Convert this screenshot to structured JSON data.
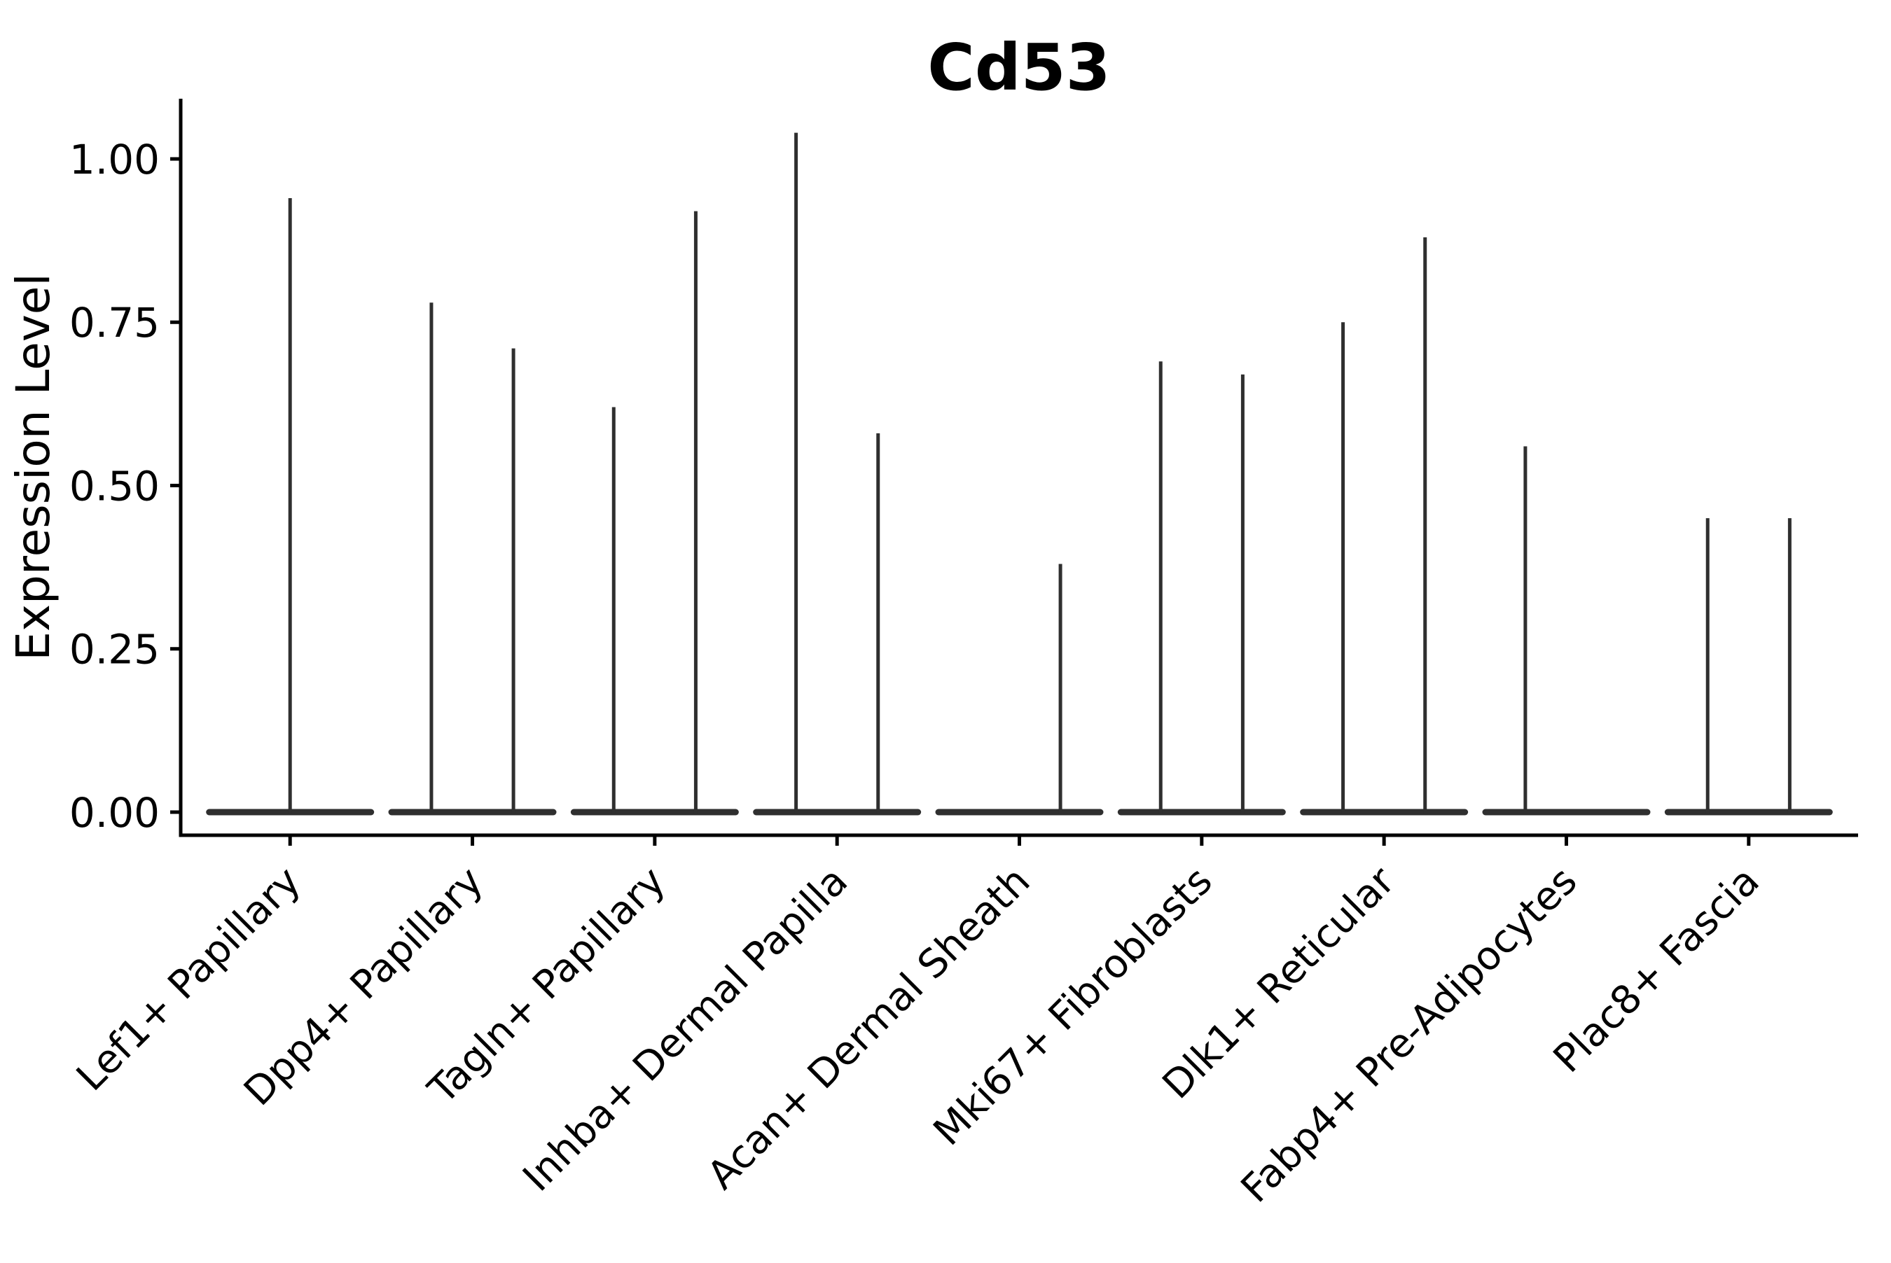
{
  "title": "Cd53",
  "colors": {
    "violin": "#2f2f2f",
    "axis": "#000000",
    "text": "#000000",
    "background": "#ffffff"
  },
  "chart_data": {
    "type": "violin",
    "title": "Cd53",
    "xlabel": "",
    "ylabel": "Expression Level",
    "ylim": [
      -0.04,
      1.09
    ],
    "yticks": [
      {
        "value": 1.0,
        "label": "1.00"
      },
      {
        "value": 0.75,
        "label": "0.75"
      },
      {
        "value": 0.5,
        "label": "0.50"
      },
      {
        "value": 0.25,
        "label": "0.25"
      },
      {
        "value": 0.0,
        "label": "0.00"
      }
    ],
    "grid": false,
    "legend": "none",
    "baseline_value": 0,
    "description": "Violin plot of Cd53 expression per fibroblast cluster; each violin is a flat band at 0 with thin density spikes reaching the peak expression values listed below.",
    "categories": [
      "Lef1+ Papillary",
      "Dpp4+ Papillary",
      "Tagln+ Papillary",
      "Inhba+ Dermal Papilla",
      "Acan+ Dermal Sheath",
      "Mki67+ Fibroblasts",
      "Dlk1+ Reticular",
      "Fabp4+ Pre-Adipocytes",
      "Plac8+ Fascia"
    ],
    "series": [
      {
        "category": "Lef1+ Papillary",
        "violins": [
          {
            "position": "center",
            "peak": 0.94
          }
        ]
      },
      {
        "category": "Dpp4+ Papillary",
        "violins": [
          {
            "position": "left",
            "peak": 0.78
          },
          {
            "position": "right",
            "peak": 0.71
          }
        ]
      },
      {
        "category": "Tagln+ Papillary",
        "violins": [
          {
            "position": "left",
            "peak": 0.62
          },
          {
            "position": "right",
            "peak": 0.92
          }
        ]
      },
      {
        "category": "Inhba+ Dermal Papilla",
        "violins": [
          {
            "position": "left",
            "peak": 1.04
          },
          {
            "position": "right",
            "peak": 0.58
          }
        ]
      },
      {
        "category": "Acan+ Dermal Sheath",
        "violins": [
          {
            "position": "right",
            "peak": 0.38
          }
        ]
      },
      {
        "category": "Mki67+ Fibroblasts",
        "violins": [
          {
            "position": "left",
            "peak": 0.69
          },
          {
            "position": "right",
            "peak": 0.67
          }
        ]
      },
      {
        "category": "Dlk1+ Reticular",
        "violins": [
          {
            "position": "left",
            "peak": 0.75
          },
          {
            "position": "right",
            "peak": 0.88
          }
        ]
      },
      {
        "category": "Fabp4+ Pre-Adipocytes",
        "violins": [
          {
            "position": "left",
            "peak": 0.56
          }
        ]
      },
      {
        "category": "Plac8+ Fascia",
        "violins": [
          {
            "position": "left",
            "peak": 0.45
          },
          {
            "position": "right",
            "peak": 0.45
          }
        ]
      }
    ]
  }
}
